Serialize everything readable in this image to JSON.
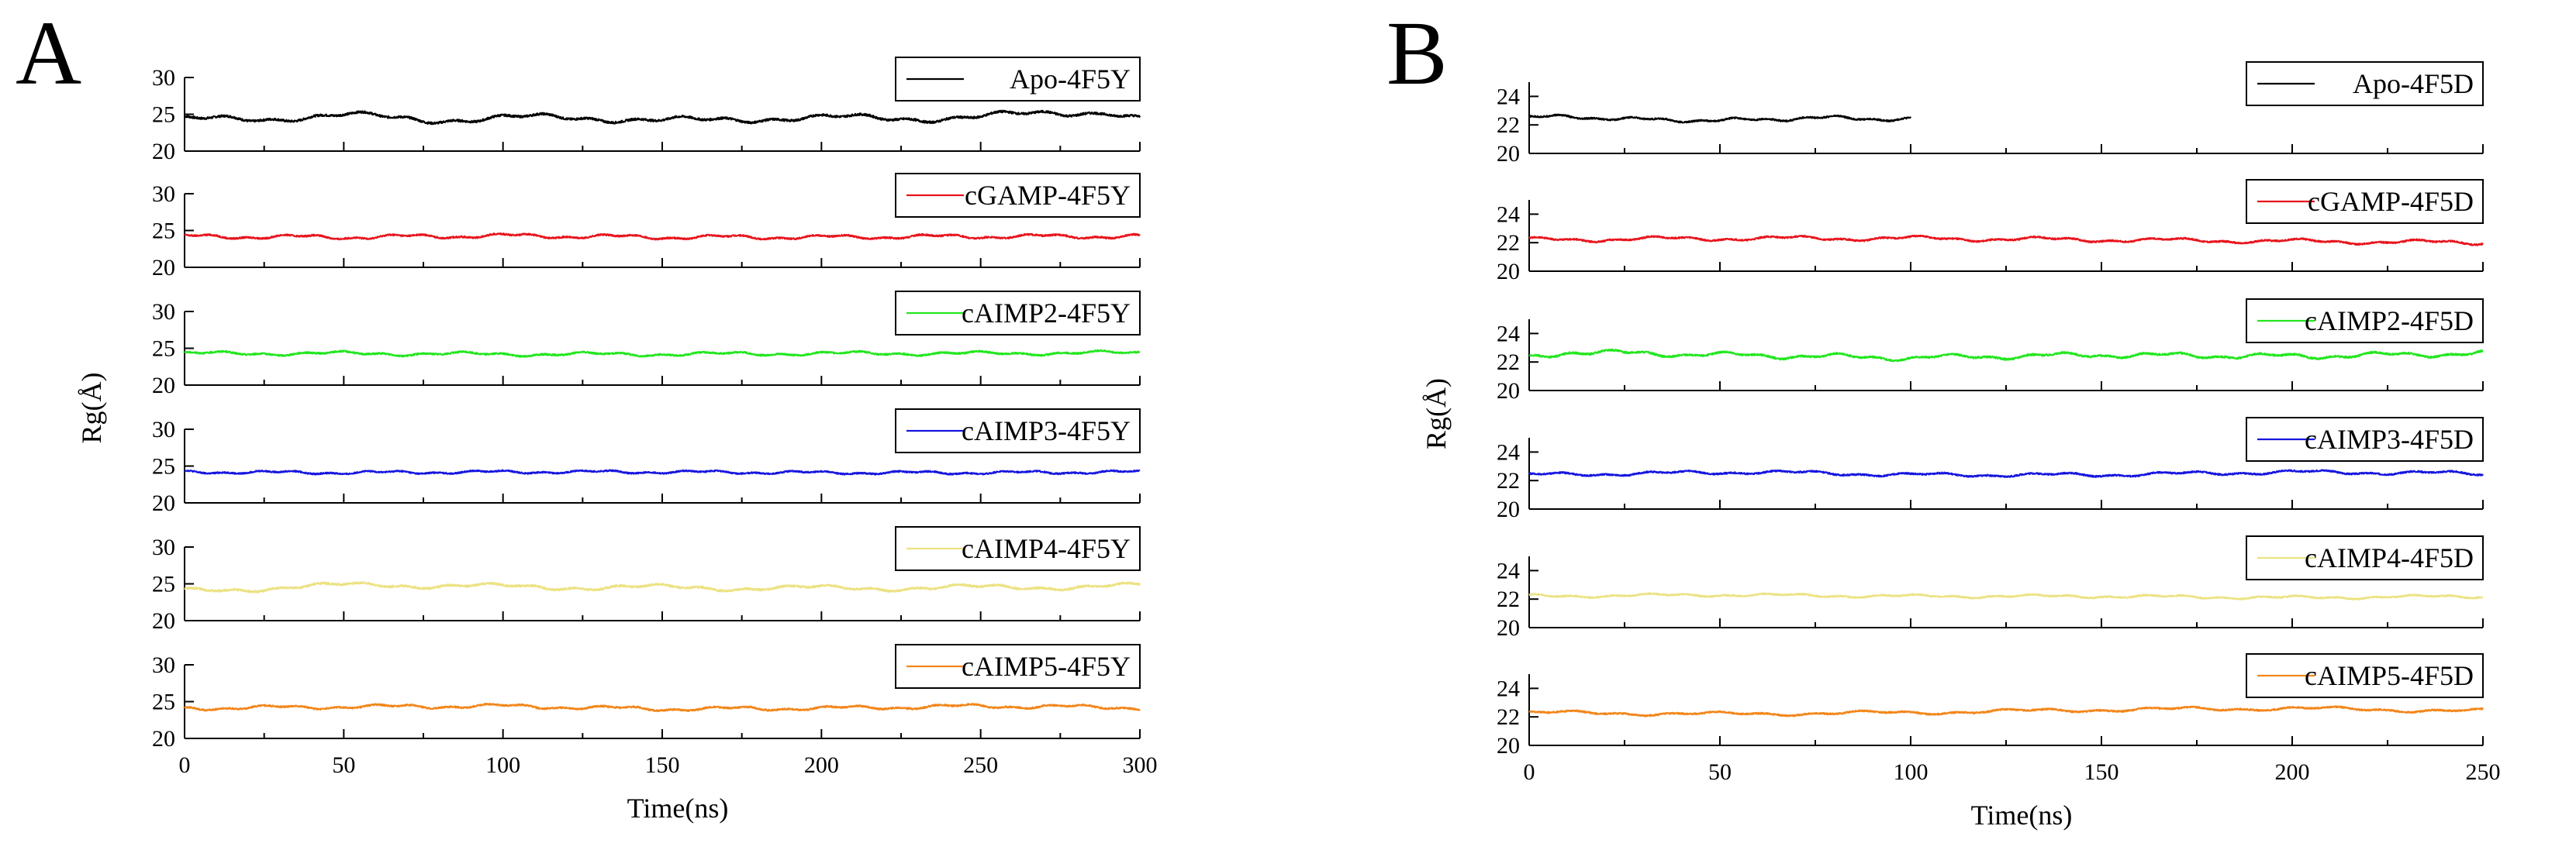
{
  "chart_data": [
    {
      "panel": "A",
      "type": "line",
      "xlabel": "Time(ns)",
      "ylabel": "Rg(Å)",
      "xlim": [
        0,
        300
      ],
      "xticks": [
        0,
        50,
        100,
        150,
        200,
        250,
        300
      ],
      "xtick_labels": [
        "0",
        "50",
        "100",
        "150",
        "200",
        "250",
        "300"
      ],
      "ylim": [
        20,
        30
      ],
      "yticks": [
        20,
        25,
        30
      ],
      "ytick_labels": [
        "20",
        "25",
        "30"
      ],
      "grid": false,
      "legend_position": "top-right",
      "series": [
        {
          "name": "Apo-4F5Y",
          "color": "#000000",
          "x_end": 300,
          "base": 24.5,
          "waves": [
            [
              0.35,
              0.02,
              0.6
            ],
            [
              0.2,
              0.07,
              2.1
            ],
            [
              0.15,
              0.013,
              4.4
            ]
          ],
          "noise": 0.28,
          "points": [
            [
              0,
              24.5
            ],
            [
              25,
              24.3
            ],
            [
              50,
              24.8
            ],
            [
              75,
              24.4
            ],
            [
              100,
              24.5
            ],
            [
              150,
              24.3
            ],
            [
              200,
              24.4
            ],
            [
              250,
              24.7
            ],
            [
              290,
              25.3
            ],
            [
              300,
              24.4
            ]
          ]
        },
        {
          "name": "cGAMP-4F5Y",
          "color": "#e8141c",
          "x_end": 300,
          "base": 24.2,
          "waves": [
            [
              0.22,
              0.03,
              1.1
            ],
            [
              0.12,
              0.09,
              3.0
            ]
          ],
          "noise": 0.2,
          "points": [
            [
              0,
              24.2
            ],
            [
              50,
              24.1
            ],
            [
              100,
              24.3
            ],
            [
              150,
              24.1
            ],
            [
              200,
              24.1
            ],
            [
              250,
              24.2
            ],
            [
              300,
              24.2
            ]
          ]
        },
        {
          "name": "cAIMP2-4F5Y",
          "color": "#22e61e",
          "x_end": 300,
          "base": 24.3,
          "waves": [
            [
              0.18,
              0.025,
              0.3
            ],
            [
              0.12,
              0.08,
              1.7
            ]
          ],
          "noise": 0.2,
          "points": [
            [
              0,
              24.3
            ],
            [
              50,
              24.3
            ],
            [
              100,
              24.2
            ],
            [
              150,
              24.2
            ],
            [
              200,
              24.3
            ],
            [
              250,
              24.3
            ],
            [
              300,
              24.4
            ]
          ]
        },
        {
          "name": "cAIMP3-4F5Y",
          "color": "#1515e0",
          "x_end": 300,
          "base": 24.1,
          "waves": [
            [
              0.15,
              0.03,
              2.4
            ],
            [
              0.1,
              0.09,
              0.9
            ]
          ],
          "noise": 0.18,
          "points": [
            [
              0,
              24.2
            ],
            [
              50,
              24.1
            ],
            [
              100,
              24.2
            ],
            [
              150,
              24.2
            ],
            [
              200,
              24.1
            ],
            [
              250,
              24.1
            ],
            [
              300,
              24.2
            ]
          ]
        },
        {
          "name": "cAIMP4-4F5Y",
          "color": "#ece282",
          "x_end": 300,
          "base": 24.5,
          "waves": [
            [
              0.3,
              0.02,
              1.9
            ],
            [
              0.15,
              0.075,
              0.4
            ]
          ],
          "noise": 0.25,
          "points": [
            [
              0,
              24.0
            ],
            [
              30,
              24.5
            ],
            [
              60,
              24.9
            ],
            [
              100,
              24.6
            ],
            [
              150,
              24.5
            ],
            [
              200,
              24.4
            ],
            [
              250,
              24.5
            ],
            [
              300,
              24.7
            ]
          ]
        },
        {
          "name": "cAIMP5-4F5Y",
          "color": "#f2861a",
          "x_end": 300,
          "base": 24.2,
          "waves": [
            [
              0.2,
              0.028,
              2.9
            ],
            [
              0.12,
              0.085,
              1.2
            ]
          ],
          "noise": 0.2,
          "points": [
            [
              0,
              24.1
            ],
            [
              50,
              24.3
            ],
            [
              100,
              24.4
            ],
            [
              150,
              24.0
            ],
            [
              200,
              24.1
            ],
            [
              250,
              24.4
            ],
            [
              300,
              24.2
            ]
          ]
        }
      ]
    },
    {
      "panel": "B",
      "type": "line",
      "xlabel": "Time(ns)",
      "ylabel": "Rg(Å)",
      "xlim": [
        0,
        250
      ],
      "xticks": [
        0,
        50,
        100,
        150,
        200,
        250
      ],
      "xtick_labels": [
        "0",
        "50",
        "100",
        "150",
        "200",
        "250"
      ],
      "ylim": [
        20,
        25
      ],
      "yticks": [
        20,
        22,
        24
      ],
      "ytick_labels": [
        "20",
        "22",
        "24"
      ],
      "grid": false,
      "legend_position": "top-right",
      "series": [
        {
          "name": "Apo-4F5D",
          "color": "#000000",
          "x_end": 100,
          "base": 22.45,
          "waves": [
            [
              0.1,
              0.04,
              0.5
            ],
            [
              0.06,
              0.11,
              2.2
            ]
          ],
          "noise": 0.1,
          "points": [
            [
              0,
              22.5
            ],
            [
              10,
              22.6
            ],
            [
              25,
              22.4
            ],
            [
              50,
              22.3
            ],
            [
              75,
              22.5
            ],
            [
              100,
              22.4
            ]
          ]
        },
        {
          "name": "cGAMP-4F5D",
          "color": "#e8141c",
          "x_end": 250,
          "base": 22.2,
          "waves": [
            [
              0.12,
              0.03,
              1.3
            ],
            [
              0.06,
              0.1,
              0.2
            ]
          ],
          "noise": 0.1,
          "points": [
            [
              0,
              22.2
            ],
            [
              50,
              22.3
            ],
            [
              100,
              22.3
            ],
            [
              150,
              22.2
            ],
            [
              200,
              22.1
            ],
            [
              250,
              22.0
            ]
          ]
        },
        {
          "name": "cAIMP2-4F5D",
          "color": "#22e61e",
          "x_end": 250,
          "base": 22.45,
          "waves": [
            [
              0.14,
              0.035,
              2.6
            ],
            [
              0.08,
              0.1,
              1.0
            ]
          ],
          "noise": 0.12,
          "points": [
            [
              0,
              22.3
            ],
            [
              10,
              22.7
            ],
            [
              50,
              22.5
            ],
            [
              100,
              22.3
            ],
            [
              150,
              22.5
            ],
            [
              200,
              22.4
            ],
            [
              250,
              22.6
            ]
          ]
        },
        {
          "name": "cAIMP3-4F5D",
          "color": "#1515e0",
          "x_end": 250,
          "base": 22.45,
          "waves": [
            [
              0.1,
              0.03,
              0.8
            ],
            [
              0.06,
              0.09,
              2.8
            ]
          ],
          "noise": 0.1,
          "points": [
            [
              0,
              22.4
            ],
            [
              60,
              22.6
            ],
            [
              100,
              22.4
            ],
            [
              150,
              22.4
            ],
            [
              200,
              22.6
            ],
            [
              250,
              22.5
            ]
          ]
        },
        {
          "name": "cAIMP4-4F5D",
          "color": "#ece282",
          "x_end": 250,
          "base": 22.2,
          "waves": [
            [
              0.08,
              0.03,
              1.6
            ],
            [
              0.05,
              0.1,
              0.6
            ]
          ],
          "noise": 0.09,
          "points": [
            [
              0,
              22.2
            ],
            [
              50,
              22.3
            ],
            [
              100,
              22.2
            ],
            [
              150,
              22.2
            ],
            [
              200,
              22.1
            ],
            [
              250,
              22.2
            ]
          ]
        },
        {
          "name": "cAIMP5-4F5D",
          "color": "#f2861a",
          "x_end": 250,
          "base": 22.35,
          "waves": [
            [
              0.1,
              0.025,
              0.1
            ],
            [
              0.06,
              0.08,
              1.9
            ]
          ],
          "noise": 0.1,
          "points": [
            [
              0,
              22.3
            ],
            [
              50,
              22.2
            ],
            [
              100,
              22.3
            ],
            [
              150,
              22.5
            ],
            [
              200,
              22.6
            ],
            [
              250,
              22.4
            ]
          ]
        }
      ]
    }
  ]
}
